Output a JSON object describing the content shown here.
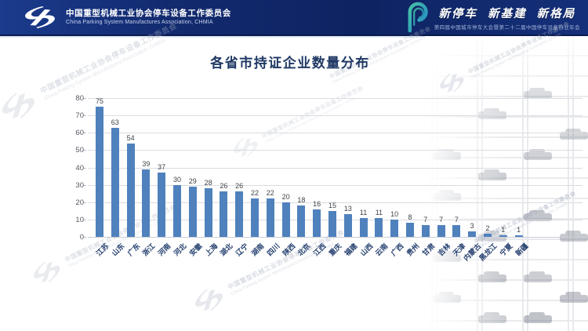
{
  "header": {
    "org_name_cn": "中国重型机械工业协会停车设备工作委员会",
    "org_name_en": "China Parking System Manufactures Association, CHMIA",
    "slogan": "新停车 新基建 新格局",
    "slogan_sub": "第四届中国城市停车大会暨第二十二届中国停车设备行业年会",
    "banner_color": "#0e2361"
  },
  "watermark": {
    "line1": "中国重型机械工业协会停车设备工作委员会",
    "line2": "China Parking System Manufactures Association, CHMIA"
  },
  "chart_data": {
    "type": "bar",
    "title": "各省市持证企业数量分布",
    "categories": [
      "江苏",
      "山东",
      "广东",
      "浙江",
      "河南",
      "河北",
      "安徽",
      "上海",
      "湖北",
      "辽宁",
      "湖南",
      "四川",
      "陕西",
      "北京",
      "江西",
      "重庆",
      "福建",
      "山西",
      "云南",
      "广西",
      "贵州",
      "甘肃",
      "吉林",
      "天津",
      "内蒙古",
      "黑龙江",
      "宁夏",
      "新疆"
    ],
    "values": [
      75,
      63,
      54,
      39,
      37,
      30,
      29,
      28,
      26,
      26,
      22,
      22,
      20,
      18,
      16,
      15,
      13,
      11,
      11,
      10,
      8,
      7,
      7,
      7,
      3,
      2,
      1,
      1
    ],
    "xlabel": "",
    "ylabel": "",
    "ylim": [
      0,
      80
    ],
    "ytick_interval": 10,
    "grid": true,
    "legend": false,
    "bar_color": "#4f81bd",
    "value_label_color": "#3f4348",
    "category_label_color": "#25406f",
    "tick_label_color": "#555a63",
    "title_color": "#1f3864"
  }
}
